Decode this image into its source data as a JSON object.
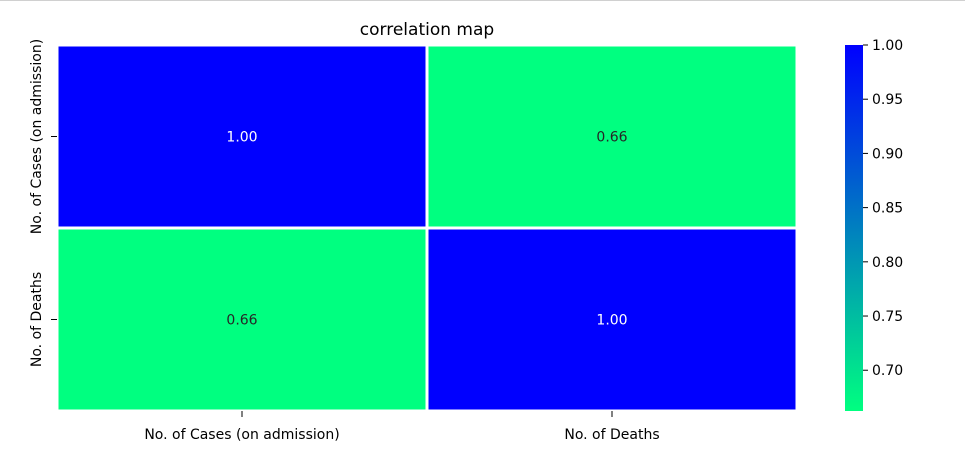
{
  "chart_data": {
    "type": "heatmap",
    "title": "correlation map",
    "xlabel": "",
    "ylabel": "",
    "x_categories": [
      "No. of Cases (on admission)",
      "No. of Deaths"
    ],
    "y_categories": [
      "No. of Cases (on admission)",
      "No. of Deaths"
    ],
    "values": [
      [
        1.0,
        0.66
      ],
      [
        0.66,
        1.0
      ]
    ],
    "value_format": "0.00",
    "colormap": "winter_r",
    "colormap_colors": [
      "#00ff80",
      "#0000ff"
    ],
    "colorbar": {
      "range": [
        0.6624,
        1.0
      ],
      "ticks": [
        0.7,
        0.75,
        0.8,
        0.85,
        0.9,
        0.95,
        1.0
      ],
      "tick_labels": [
        "0.70",
        "0.75",
        "0.80",
        "0.85",
        "0.90",
        "0.95",
        "1.00"
      ]
    },
    "annotation_color_on_dark": "#ffffff",
    "annotation_color_on_light": "#262626",
    "cell_separator_color": "#ffffff",
    "grid": false,
    "legend": "colorbar-right"
  }
}
